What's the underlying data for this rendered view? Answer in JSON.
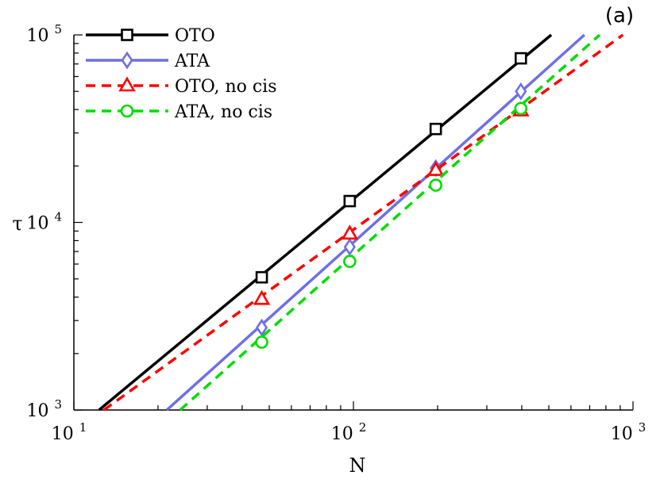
{
  "chart_data": {
    "type": "line",
    "panel_label": "(a)",
    "xlabel": "N",
    "ylabel": "τ",
    "xscale": "log",
    "yscale": "log",
    "xlim": [
      10,
      1000
    ],
    "ylim": [
      1000,
      100000
    ],
    "x_ticks": [
      {
        "base": "10",
        "exp": "1",
        "value": 10
      },
      {
        "base": "10",
        "exp": "2",
        "value": 100
      },
      {
        "base": "10",
        "exp": "3",
        "value": 1000
      }
    ],
    "y_ticks": [
      {
        "base": "10",
        "exp": "3",
        "value": 1000
      },
      {
        "base": "10",
        "exp": "4",
        "value": 10000
      },
      {
        "base": "10",
        "exp": "5",
        "value": 100000
      }
    ],
    "legend_position": "top-left",
    "grid": false,
    "series": [
      {
        "name": "OTO",
        "color": "#000000",
        "dash": "solid",
        "marker": "square",
        "x": [
          47,
          97,
          197,
          397
        ],
        "y": [
          5100,
          13000,
          31500,
          75000
        ],
        "line_from": [
          12.3,
          1000
        ],
        "line_to": [
          510,
          100000
        ]
      },
      {
        "name": "ATA",
        "color": "#6f6fe6",
        "dash": "solid",
        "marker": "diamond",
        "x": [
          47,
          97,
          197,
          397
        ],
        "y": [
          2750,
          7400,
          19500,
          50000
        ],
        "line_from": [
          21.5,
          1000
        ],
        "line_to": [
          670,
          100000
        ]
      },
      {
        "name": "OTO, no cis",
        "color": "#ff0000",
        "dash": "dashed",
        "marker": "triangle",
        "x": [
          47,
          97,
          197,
          397
        ],
        "y": [
          3900,
          8700,
          19000,
          39500
        ],
        "line_from": [
          12.8,
          1000
        ],
        "line_to": [
          920,
          100000
        ]
      },
      {
        "name": "ATA, no cis",
        "color": "#00dd00",
        "dash": "dashed",
        "marker": "circle",
        "x": [
          47,
          97,
          197,
          397
        ],
        "y": [
          2300,
          6200,
          15800,
          40500
        ],
        "line_from": [
          24,
          1000
        ],
        "line_to": [
          760,
          100000
        ]
      }
    ]
  }
}
